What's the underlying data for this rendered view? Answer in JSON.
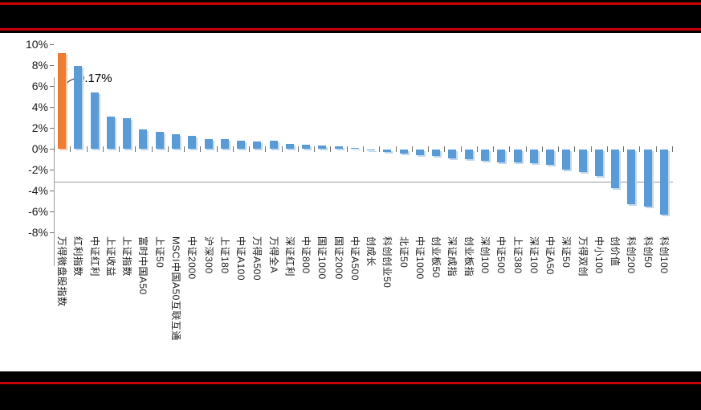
{
  "banner": {
    "top_band_color": "#000000",
    "bottom_band_color": "#000000",
    "rule_color": "#cc0000"
  },
  "chart_data": {
    "type": "bar",
    "title": "",
    "xlabel": "",
    "ylabel": "",
    "unit": "%",
    "ylim": [
      -8,
      10
    ],
    "ytick_step": 2,
    "ytick_labels": [
      "10%",
      "8%",
      "6%",
      "4%",
      "2%",
      "0%",
      "-2%",
      "-4%",
      "-6%",
      "-8%"
    ],
    "grid": false,
    "legend_position": "none",
    "bar_color": "#5b9bd5",
    "highlight_color": "#ed7d31",
    "highlight_index": 0,
    "annotation": {
      "text": "9.17%",
      "index": 0
    },
    "categories": [
      "万得微盘股指数",
      "红利指数",
      "中证红利",
      "上证收益",
      "上证指数",
      "富时中国A50",
      "上证50",
      "MSCI中国A50互联互通",
      "中证2000",
      "沪深300",
      "上证180",
      "中证A100",
      "万得A500",
      "万得全A",
      "深证红利",
      "中证800",
      "国证1000",
      "国证2000",
      "中证A500",
      "创成长",
      "科创创业50",
      "北证50",
      "中证1000",
      "创业板50",
      "深证成指",
      "创业板指",
      "深创100",
      "中证500",
      "上证380",
      "深证100",
      "中证A50",
      "深证50",
      "万得双创",
      "中小100",
      "创价值",
      "科创200",
      "科创50",
      "科创100"
    ],
    "values": [
      9.17,
      7.9,
      5.4,
      3.1,
      2.95,
      1.85,
      1.65,
      1.35,
      1.2,
      0.95,
      0.9,
      0.8,
      0.7,
      0.75,
      0.45,
      0.35,
      0.3,
      0.2,
      0.1,
      -0.05,
      -0.2,
      -0.4,
      -0.5,
      -0.6,
      -0.85,
      -0.95,
      -1.05,
      -1.2,
      -1.25,
      -1.3,
      -1.45,
      -1.9,
      -2.15,
      -2.5,
      -3.7,
      -5.25,
      -5.45,
      -6.2
    ]
  }
}
